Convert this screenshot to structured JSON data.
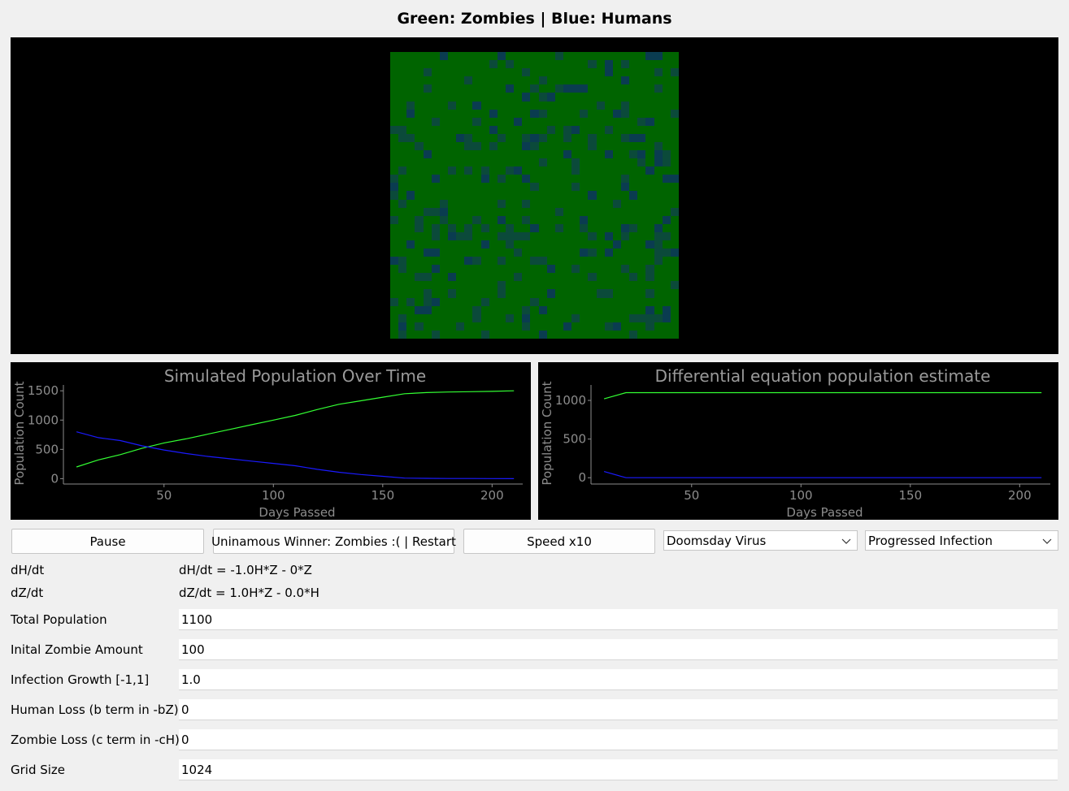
{
  "header": {
    "title": "Green: Zombies | Blue: Humans"
  },
  "colors": {
    "zombie": "#006400",
    "human_cell_a": "#0b4a3a",
    "human_cell_b": "#0a3c50",
    "zombie_line": "#33ff33",
    "human_line": "#1a1aff",
    "panel_bg": "#000000"
  },
  "grid": {
    "columns": 35,
    "rows": 35
  },
  "controls": {
    "pause_label": "Pause",
    "restart_label": "Uninamous Winner: Zombies :( | Restart",
    "speed_label": "Speed x10",
    "virus_select": "Doomsday Virus",
    "infection_select": "Progressed Infection"
  },
  "equations": {
    "dh_label": "dH/dt",
    "dh_value": "dH/dt = -1.0H*Z - 0*Z",
    "dz_label": "dZ/dt",
    "dz_value": "dZ/dt = 1.0H*Z - 0.0*H"
  },
  "fields": [
    {
      "label": "Total Population",
      "value": "1100"
    },
    {
      "label": "Inital Zombie Amount",
      "value": "100"
    },
    {
      "label": "Infection Growth [-1,1]",
      "value": "1.0"
    },
    {
      "label": "Human Loss (b term in -bZ)",
      "value": "0"
    },
    {
      "label": "Zombie Loss (c term in -cH)",
      "value": "0"
    },
    {
      "label": "Grid Size",
      "value": "1024"
    }
  ],
  "chart_data": [
    {
      "type": "line",
      "title": "Simulated Population Over Time",
      "xlabel": "Days Passed",
      "ylabel": "Population Count",
      "xlim": [
        4,
        214
      ],
      "ylim": [
        -50,
        1600
      ],
      "xticks": [
        50,
        100,
        150,
        200
      ],
      "yticks": [
        0,
        500,
        1000,
        1500
      ],
      "series": [
        {
          "color": "#33ff33",
          "x": [
            10,
            20,
            30,
            40,
            50,
            60,
            70,
            80,
            90,
            100,
            110,
            120,
            130,
            140,
            150,
            160,
            170,
            180,
            190,
            200,
            210
          ],
          "y": [
            200,
            320,
            410,
            520,
            610,
            680,
            760,
            840,
            920,
            1000,
            1080,
            1180,
            1270,
            1330,
            1390,
            1450,
            1470,
            1480,
            1485,
            1490,
            1500
          ]
        },
        {
          "color": "#1a1aff",
          "x": [
            10,
            20,
            30,
            40,
            50,
            60,
            70,
            80,
            90,
            100,
            110,
            120,
            130,
            140,
            150,
            160,
            170,
            180,
            190,
            200,
            210
          ],
          "y": [
            800,
            700,
            650,
            560,
            490,
            430,
            380,
            340,
            300,
            260,
            220,
            160,
            110,
            70,
            40,
            10,
            5,
            3,
            2,
            1,
            0
          ]
        }
      ]
    },
    {
      "type": "line",
      "title": "Differential equation population estimate",
      "xlabel": "Days Passed",
      "ylabel": "Population Count",
      "xlim": [
        4,
        214
      ],
      "ylim": [
        -50,
        1200
      ],
      "xticks": [
        50,
        100,
        150,
        200
      ],
      "yticks": [
        0,
        500,
        1000
      ],
      "series": [
        {
          "color": "#33ff33",
          "x": [
            10,
            20,
            210
          ],
          "y": [
            1020,
            1100,
            1100
          ]
        },
        {
          "color": "#1a1aff",
          "x": [
            10,
            20,
            210
          ],
          "y": [
            80,
            0,
            0
          ]
        }
      ]
    }
  ]
}
